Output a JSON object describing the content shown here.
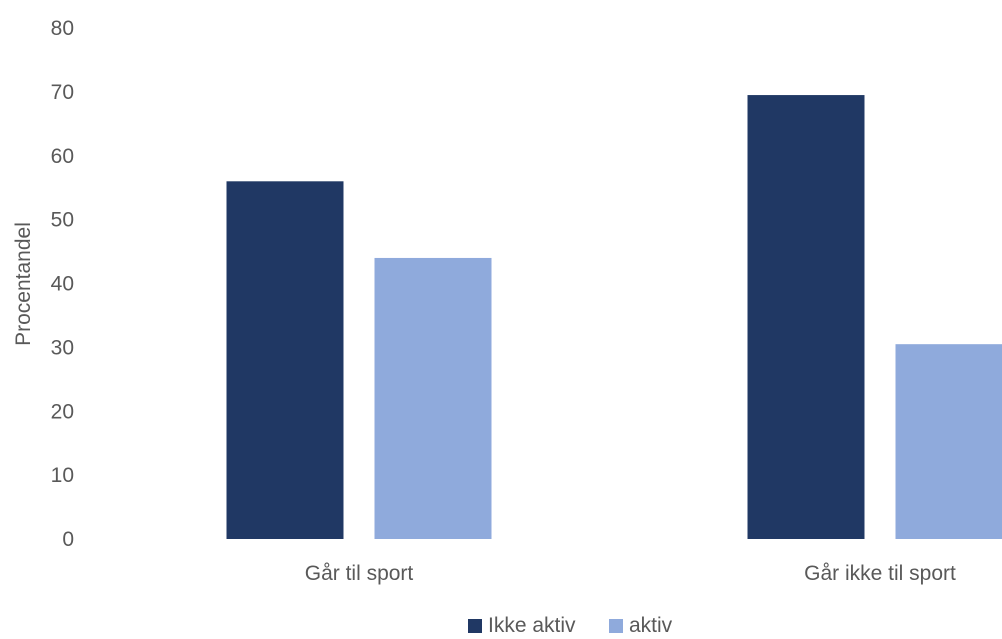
{
  "chart_data": {
    "type": "bar",
    "title": "",
    "xlabel": "",
    "ylabel": "Procentandel",
    "ylim": [
      0,
      80
    ],
    "yticks": [
      0,
      10,
      20,
      30,
      40,
      50,
      60,
      70,
      80
    ],
    "grid": false,
    "legend_position": "bottom",
    "categories": [
      "Går til sport",
      "Går ikke til sport"
    ],
    "series": [
      {
        "name": "Ikke aktiv",
        "color": "#203864",
        "values": [
          56,
          69.5
        ]
      },
      {
        "name": "aktiv",
        "color": "#8FAADC",
        "values": [
          44,
          30.5
        ]
      }
    ]
  }
}
